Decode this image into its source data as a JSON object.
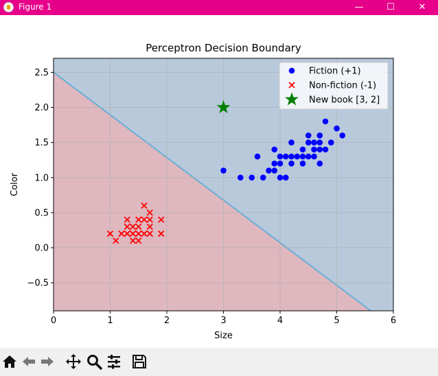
{
  "window": {
    "title": "Figure 1",
    "minimize_label": "—",
    "maximize_label": "☐",
    "close_label": "✕"
  },
  "chart_data": {
    "type": "scatter",
    "title": "Perceptron Decision Boundary",
    "xlabel": "Size",
    "ylabel": "Color",
    "xlim": [
      0,
      6
    ],
    "ylim": [
      -0.9,
      2.7
    ],
    "xticks": [
      0,
      1,
      2,
      3,
      4,
      5,
      6
    ],
    "yticks": [
      -0.5,
      0.0,
      0.5,
      1.0,
      1.5,
      2.0,
      2.5
    ],
    "xtick_labels": [
      "0",
      "1",
      "2",
      "3",
      "4",
      "5",
      "6"
    ],
    "ytick_labels": [
      "−0.5",
      "0.0",
      "0.5",
      "1.0",
      "1.5",
      "2.0",
      "2.5"
    ],
    "grid": true,
    "legend_position": "upper-right",
    "decision_boundary": {
      "x": [
        0,
        5.6
      ],
      "y": [
        2.5,
        -0.9
      ]
    },
    "region_colors": {
      "positive": "#b8c9dc",
      "negative": "#dfb7bf",
      "boundary": "#6baed6"
    },
    "series": [
      {
        "name": "Fiction (+1)",
        "marker": "circle",
        "color": "#0000ff",
        "points": [
          [
            3.0,
            1.1
          ],
          [
            3.3,
            1.0
          ],
          [
            3.5,
            1.0
          ],
          [
            3.6,
            1.3
          ],
          [
            3.7,
            1.0
          ],
          [
            3.8,
            1.1
          ],
          [
            3.9,
            1.1
          ],
          [
            3.9,
            1.2
          ],
          [
            3.9,
            1.4
          ],
          [
            4.0,
            1.0
          ],
          [
            4.0,
            1.2
          ],
          [
            4.0,
            1.3
          ],
          [
            4.1,
            1.0
          ],
          [
            4.1,
            1.3
          ],
          [
            4.2,
            1.2
          ],
          [
            4.2,
            1.3
          ],
          [
            4.2,
            1.5
          ],
          [
            4.3,
            1.3
          ],
          [
            4.4,
            1.2
          ],
          [
            4.4,
            1.3
          ],
          [
            4.4,
            1.4
          ],
          [
            4.5,
            1.3
          ],
          [
            4.5,
            1.5
          ],
          [
            4.5,
            1.6
          ],
          [
            4.6,
            1.3
          ],
          [
            4.6,
            1.4
          ],
          [
            4.6,
            1.5
          ],
          [
            4.7,
            1.2
          ],
          [
            4.7,
            1.4
          ],
          [
            4.7,
            1.5
          ],
          [
            4.7,
            1.6
          ],
          [
            4.8,
            1.4
          ],
          [
            4.8,
            1.8
          ],
          [
            4.9,
            1.5
          ],
          [
            5.0,
            1.7
          ],
          [
            5.1,
            1.6
          ]
        ]
      },
      {
        "name": "Non-fiction (-1)",
        "marker": "x",
        "color": "#ff0000",
        "points": [
          [
            1.0,
            0.2
          ],
          [
            1.1,
            0.1
          ],
          [
            1.2,
            0.2
          ],
          [
            1.3,
            0.2
          ],
          [
            1.3,
            0.3
          ],
          [
            1.3,
            0.4
          ],
          [
            1.4,
            0.1
          ],
          [
            1.4,
            0.2
          ],
          [
            1.4,
            0.3
          ],
          [
            1.5,
            0.1
          ],
          [
            1.5,
            0.2
          ],
          [
            1.5,
            0.3
          ],
          [
            1.5,
            0.4
          ],
          [
            1.6,
            0.2
          ],
          [
            1.6,
            0.4
          ],
          [
            1.6,
            0.6
          ],
          [
            1.7,
            0.2
          ],
          [
            1.7,
            0.3
          ],
          [
            1.7,
            0.4
          ],
          [
            1.7,
            0.5
          ],
          [
            1.9,
            0.2
          ],
          [
            1.9,
            0.4
          ]
        ]
      },
      {
        "name": "New book [3, 2]",
        "marker": "star",
        "color": "#008000",
        "points": [
          [
            3.0,
            2.0
          ]
        ]
      }
    ]
  },
  "toolbar": {
    "buttons": [
      "home-icon",
      "back-icon",
      "forward-icon",
      "pan-icon",
      "zoom-icon",
      "configure-icon",
      "save-icon"
    ]
  }
}
